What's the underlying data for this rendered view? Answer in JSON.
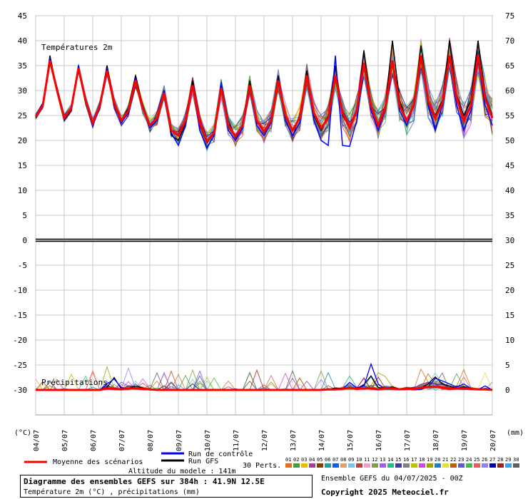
{
  "chart_data": {
    "type": "line",
    "title": "Diagramme des ensembles GEFS sur 384h : 41.9N 12.5E",
    "subtitle": "Température 2m (°C) , précipitations (mm)",
    "altitude": "Altitude du modele : 141m",
    "run": "Ensemble GEFS du 04/07/2025 - 00Z",
    "copyright": "Copyright 2025 Meteociel.fr",
    "panel_temp_label": "Températures 2m",
    "panel_precip_label": "Précipitations",
    "left_unit": "(°C)",
    "right_unit": "(mm)",
    "left_ticks": [
      45,
      40,
      35,
      30,
      25,
      20,
      15,
      10,
      5,
      0,
      -5,
      -10,
      -15,
      -20,
      -25,
      -30
    ],
    "right_ticks": [
      75,
      70,
      65,
      60,
      55,
      50,
      45,
      40,
      35,
      30,
      25,
      20,
      15,
      10,
      5,
      0
    ],
    "x_labels": [
      "04/07",
      "05/07",
      "06/07",
      "07/07",
      "08/07",
      "09/07",
      "10/07",
      "11/07",
      "12/07",
      "13/07",
      "14/07",
      "15/07",
      "16/07",
      "17/07",
      "18/07",
      "19/07",
      "20/07"
    ],
    "ylim_temp": [
      -30,
      45
    ],
    "legend": {
      "mean": "Moyenne des scénarios",
      "control": "Run de contrôle",
      "gfs": "Run GFS",
      "perts": "30 Perts.",
      "pert_numbers": [
        "01",
        "02",
        "03",
        "04",
        "05",
        "06",
        "07",
        "08",
        "09",
        "10",
        "11",
        "12",
        "13",
        "14",
        "15",
        "16",
        "17",
        "18",
        "19",
        "20",
        "21",
        "22",
        "23",
        "24",
        "25",
        "26",
        "27",
        "28",
        "29",
        "30"
      ],
      "pert_colors": [
        "#e07020",
        "#40a040",
        "#e0c000",
        "#a040a0",
        "#804000",
        "#20a0a0",
        "#1060e0",
        "#e0a060",
        "#80c0e0",
        "#c04040",
        "#f0a0c0",
        "#80a040",
        "#a060e0",
        "#20c080",
        "#4040a0",
        "#808080",
        "#c0c000",
        "#e040e0",
        "#a0a000",
        "#2080c0",
        "#e0e040",
        "#c06000",
        "#6060c0",
        "#40c040",
        "#e06060",
        "#9080f0",
        "#0000a0",
        "#a02020",
        "#40a0e0",
        "#606060"
      ]
    },
    "colors": {
      "mean": "#ff0000",
      "control": "#0000ff",
      "gfs": "#000000"
    },
    "series": [
      {
        "name": "Moyenne des scénarios",
        "values": [
          24.8,
          27,
          36,
          30,
          24.5,
          26.5,
          34.5,
          28,
          23.5,
          27,
          34,
          27.5,
          24,
          26,
          32,
          26.5,
          23,
          24.5,
          29.5,
          22,
          21,
          24,
          31,
          23.5,
          19.8,
          21.5,
          30.5,
          23,
          20.8,
          23,
          31,
          24,
          21.8,
          24,
          32,
          25,
          22,
          24.5,
          33,
          25.5,
          22.5,
          24.5,
          33,
          25.5,
          22.5,
          26,
          35.5,
          27,
          23,
          26.5,
          36,
          27,
          24,
          27,
          37,
          28,
          24.5,
          27.5,
          37,
          28.5,
          24,
          27,
          37,
          28.5,
          24.5
        ]
      },
      {
        "name": "Run de contrôle",
        "values": [
          25,
          27.5,
          36.5,
          29.8,
          24,
          26.5,
          35,
          28,
          23,
          26.5,
          34.5,
          27,
          23.5,
          25.5,
          32.5,
          26.5,
          22.5,
          24,
          30,
          21.5,
          19,
          23,
          31,
          22,
          18.5,
          21,
          31,
          22,
          20,
          22.5,
          31,
          23,
          21,
          23.5,
          32,
          24,
          21,
          23.5,
          33,
          24,
          20,
          19,
          37,
          19,
          18.8,
          24,
          35,
          26,
          22,
          26,
          36,
          26,
          23,
          27,
          37,
          27,
          22,
          27,
          37,
          27,
          22,
          26,
          36,
          27,
          23
        ]
      },
      {
        "name": "Run GFS",
        "values": [
          24.5,
          27,
          37,
          30,
          24,
          26,
          35,
          28,
          23,
          27,
          35,
          27.5,
          24,
          26.5,
          33,
          27,
          23,
          24.5,
          30,
          21,
          20,
          23.5,
          32,
          23,
          19.5,
          21.5,
          31,
          23.5,
          20.5,
          23,
          32,
          24,
          21.5,
          24,
          33,
          25,
          22,
          24.5,
          34,
          25,
          22,
          25,
          35,
          25,
          22.5,
          26,
          38,
          27,
          23,
          27,
          40,
          28,
          24,
          27,
          39,
          28,
          25,
          28,
          40,
          29,
          25,
          28,
          40,
          29,
          25
        ]
      },
      {
        "name": "Moyenne précipitations",
        "values": [
          0,
          0,
          0,
          0,
          0,
          0,
          0,
          0,
          0,
          0,
          0.3,
          0.2,
          0.1,
          0.3,
          0.3,
          0.2,
          0.1,
          0,
          0,
          0,
          0,
          0,
          0,
          0,
          0,
          0,
          0,
          0,
          0,
          0,
          0,
          0,
          0,
          0,
          0,
          0,
          0,
          0,
          0,
          0,
          0,
          0.1,
          0.1,
          0.2,
          0.4,
          0.2,
          0.3,
          0.3,
          0.1,
          0.3,
          0.3,
          0.1,
          0.2,
          0.2,
          0.4,
          0.6,
          0.6,
          0.5,
          0.2,
          0.3,
          0.3,
          0.2,
          0.1,
          0.1,
          0
        ]
      },
      {
        "name": "Contrôle précipitations",
        "values": [
          0,
          0,
          0,
          0,
          0,
          0,
          0,
          0,
          0,
          0,
          1.2,
          2.2,
          0.5,
          0.2,
          0.4,
          0.3,
          0.2,
          0,
          0,
          0,
          0,
          0,
          0,
          0,
          0,
          0,
          0,
          0,
          0,
          0,
          0,
          0,
          0,
          0,
          0,
          0,
          0,
          0,
          0,
          0,
          0,
          0,
          0,
          0.2,
          1.5,
          0.4,
          0.8,
          5.2,
          1.2,
          0.2,
          0.5,
          0.2,
          0.2,
          0,
          0.1,
          0.6,
          2.3,
          1.8,
          1.2,
          0.6,
          1.2,
          0.3,
          0.1,
          0.8,
          0
        ]
      },
      {
        "name": "GFS précipitations",
        "values": [
          0,
          0,
          0,
          0,
          0,
          0,
          0,
          0,
          0,
          0,
          0.5,
          2.5,
          0.2,
          0.3,
          0.8,
          0.4,
          0.1,
          0,
          0,
          0,
          0,
          0,
          0,
          0,
          0,
          0,
          0,
          0,
          0.2,
          0,
          0,
          0,
          0,
          0,
          0,
          0.1,
          0,
          0,
          0,
          0,
          0,
          0.1,
          0.4,
          0.3,
          0.5,
          0.2,
          1.1,
          2.8,
          0.5,
          0.3,
          0.6,
          0.2,
          0.3,
          0.3,
          0.4,
          1.2,
          2.6,
          1.2,
          0.8,
          0.3,
          0.6,
          0.2,
          0.1,
          0.3,
          0.1
        ]
      }
    ]
  }
}
